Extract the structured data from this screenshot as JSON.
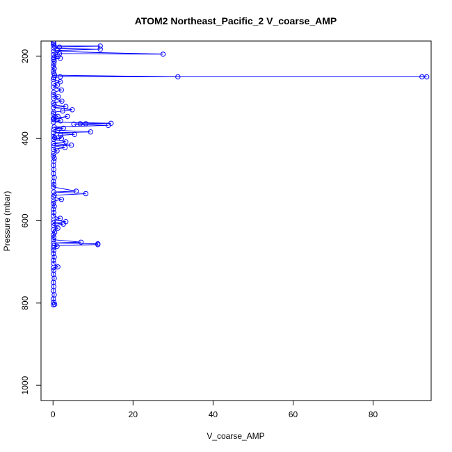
{
  "chart_data": {
    "type": "line",
    "title": "ATOM2 Northeast_Pacific_2 V_coarse_AMP",
    "xlabel": "V_coarse_AMP",
    "ylabel": "Pressure (mbar)",
    "xlim": [
      -3,
      94.5
    ],
    "ylim": [
      1037,
      163
    ],
    "y_reversed": true,
    "x_ticks": [
      0,
      20,
      40,
      60,
      80
    ],
    "y_ticks": [
      200,
      400,
      600,
      800,
      1000
    ],
    "grid": false,
    "series_color": "#0000ff",
    "markers": "open-circle",
    "series": [
      {
        "points": [
          [
            0.1,
            165
          ],
          [
            0.2,
            168
          ],
          [
            0.1,
            172
          ],
          [
            0.3,
            175
          ],
          [
            11.8,
            175
          ],
          [
            1.6,
            178
          ],
          [
            0.2,
            180
          ],
          [
            11.8,
            183
          ],
          [
            1.1,
            186
          ],
          [
            0.2,
            188
          ],
          [
            27.5,
            195
          ],
          [
            1.6,
            194
          ],
          [
            0.1,
            196
          ],
          [
            1.2,
            200
          ],
          [
            0.2,
            203
          ],
          [
            1.8,
            205
          ],
          [
            0.1,
            208
          ],
          [
            0.3,
            212
          ],
          [
            0.2,
            218
          ],
          [
            0.1,
            224
          ],
          [
            0.3,
            230
          ],
          [
            0.1,
            236
          ],
          [
            0.2,
            242
          ],
          [
            0.4,
            246
          ],
          [
            31.2,
            250
          ],
          [
            92.2,
            250
          ],
          [
            93.4,
            250
          ],
          [
            1.8,
            250
          ],
          [
            0.2,
            252
          ],
          [
            0.1,
            256
          ],
          [
            1.8,
            262
          ],
          [
            0.2,
            266
          ],
          [
            1.1,
            270
          ],
          [
            0.1,
            275
          ],
          [
            2.1,
            282
          ],
          [
            0.2,
            288
          ],
          [
            0.1,
            294
          ],
          [
            1.3,
            298
          ],
          [
            0.2,
            303
          ],
          [
            2.2,
            309
          ],
          [
            0.1,
            314
          ],
          [
            0.3,
            318
          ],
          [
            3.2,
            322
          ],
          [
            0.1,
            325
          ],
          [
            4.8,
            330
          ],
          [
            2.4,
            333
          ],
          [
            0.2,
            336
          ],
          [
            0.1,
            340
          ],
          [
            1.2,
            346
          ],
          [
            0.2,
            350
          ],
          [
            0.1,
            352
          ],
          [
            3.6,
            346
          ],
          [
            0.2,
            354
          ],
          [
            1.9,
            357
          ],
          [
            0.1,
            360
          ],
          [
            14.5,
            363
          ],
          [
            8.2,
            364
          ],
          [
            6.8,
            364
          ],
          [
            5.2,
            365
          ],
          [
            13.8,
            368
          ],
          [
            0.3,
            372
          ],
          [
            2.6,
            375
          ],
          [
            0.2,
            378
          ],
          [
            1.2,
            380
          ],
          [
            9.4,
            384
          ],
          [
            0.1,
            386
          ],
          [
            5.4,
            390
          ],
          [
            1.9,
            392
          ],
          [
            0.1,
            395
          ],
          [
            0.4,
            398
          ],
          [
            2.1,
            400
          ],
          [
            0.2,
            402
          ],
          [
            3.2,
            408
          ],
          [
            0.1,
            412
          ],
          [
            4.6,
            416
          ],
          [
            0.2,
            418
          ],
          [
            3.0,
            422
          ],
          [
            0.1,
            426
          ],
          [
            1.0,
            430
          ],
          [
            0.2,
            436
          ],
          [
            0.1,
            442
          ],
          [
            0.3,
            448
          ],
          [
            0.2,
            455
          ],
          [
            0.1,
            465
          ],
          [
            0.2,
            475
          ],
          [
            0.1,
            485
          ],
          [
            0.3,
            495
          ],
          [
            0.1,
            505
          ],
          [
            0.2,
            512
          ],
          [
            0.1,
            518
          ],
          [
            5.8,
            528
          ],
          [
            0.2,
            530
          ],
          [
            8.2,
            534
          ],
          [
            0.3,
            538
          ],
          [
            0.1,
            542
          ],
          [
            2.1,
            548
          ],
          [
            0.2,
            552
          ],
          [
            0.1,
            558
          ],
          [
            0.3,
            565
          ],
          [
            0.1,
            572
          ],
          [
            0.2,
            580
          ],
          [
            0.1,
            588
          ],
          [
            1.8,
            594
          ],
          [
            0.2,
            598
          ],
          [
            3.2,
            602
          ],
          [
            0.1,
            605
          ],
          [
            2.6,
            608
          ],
          [
            0.2,
            612
          ],
          [
            1.2,
            618
          ],
          [
            0.1,
            622
          ],
          [
            0.4,
            628
          ],
          [
            0.1,
            634
          ],
          [
            0.2,
            640
          ],
          [
            0.1,
            646
          ],
          [
            7.0,
            652
          ],
          [
            0.2,
            654
          ],
          [
            11.2,
            656
          ],
          [
            11.2,
            658
          ],
          [
            0.2,
            660
          ],
          [
            1.0,
            662
          ],
          [
            0.1,
            666
          ],
          [
            0.2,
            672
          ],
          [
            0.1,
            680
          ],
          [
            0.3,
            688
          ],
          [
            0.1,
            696
          ],
          [
            0.2,
            704
          ],
          [
            1.2,
            712
          ],
          [
            0.1,
            714
          ],
          [
            0.2,
            720
          ],
          [
            0.1,
            730
          ],
          [
            0.3,
            740
          ],
          [
            0.1,
            750
          ],
          [
            0.2,
            760
          ],
          [
            0.1,
            770
          ],
          [
            0.3,
            780
          ],
          [
            0.1,
            790
          ],
          [
            0.2,
            798
          ],
          [
            0.4,
            803
          ],
          [
            0.1,
            804
          ]
        ]
      }
    ]
  }
}
